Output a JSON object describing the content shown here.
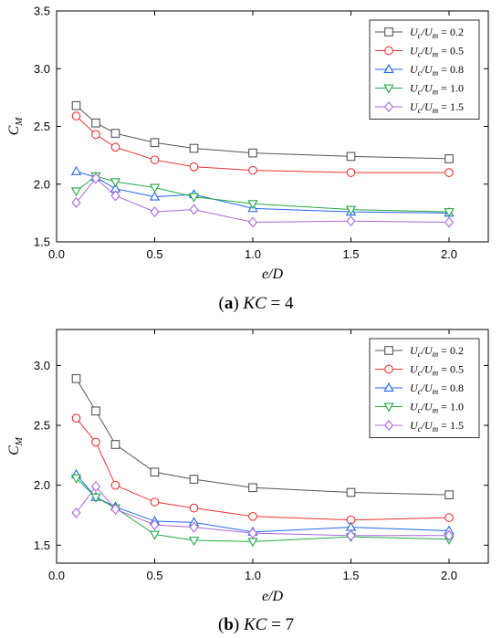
{
  "chart_data": [
    {
      "type": "line",
      "caption_label": "a",
      "caption_text": "KC = 4",
      "xlabel": "e/D",
      "ylabel": "C_M",
      "xlim": [
        0,
        2.2
      ],
      "ylim": [
        1.5,
        3.5
      ],
      "xticks": [
        0.0,
        0.5,
        1.0,
        1.5,
        2.0
      ],
      "xtick_labels": [
        "0.0",
        "0.5",
        "1.0",
        "1.5",
        "2.0"
      ],
      "yticks": [
        1.5,
        2.0,
        2.5,
        3.0,
        3.5
      ],
      "ytick_labels": [
        "1.5",
        "2.0",
        "2.5",
        "3.0",
        "3.5"
      ],
      "legend_position": "top-right",
      "x": [
        0.1,
        0.2,
        0.3,
        0.5,
        0.7,
        1.0,
        1.5,
        2.0
      ],
      "series": [
        {
          "name": "Uc/Um = 0.2",
          "color": "#555555",
          "marker": "square",
          "values": [
            2.68,
            2.53,
            2.44,
            2.36,
            2.31,
            2.27,
            2.24,
            2.22
          ]
        },
        {
          "name": "Uc/Um = 0.5",
          "color": "#ee3333",
          "marker": "circle",
          "values": [
            2.59,
            2.43,
            2.32,
            2.21,
            2.15,
            2.12,
            2.1,
            2.1
          ]
        },
        {
          "name": "Uc/Um = 0.8",
          "color": "#2266ee",
          "marker": "triangle-up",
          "values": [
            2.11,
            2.06,
            1.96,
            1.89,
            1.91,
            1.79,
            1.76,
            1.75
          ]
        },
        {
          "name": "Uc/Um = 1.0",
          "color": "#22aa44",
          "marker": "triangle-down",
          "values": [
            1.94,
            2.07,
            2.02,
            1.97,
            1.89,
            1.83,
            1.78,
            1.76
          ]
        },
        {
          "name": "Uc/Um = 1.5",
          "color": "#aa66dd",
          "marker": "diamond",
          "values": [
            1.84,
            2.05,
            1.9,
            1.76,
            1.78,
            1.67,
            1.68,
            1.67
          ]
        }
      ]
    },
    {
      "type": "line",
      "caption_label": "b",
      "caption_text": "KC = 7",
      "xlabel": "e/D",
      "ylabel": "C_M",
      "xlim": [
        0,
        2.2
      ],
      "ylim": [
        1.35,
        3.3
      ],
      "xticks": [
        0.0,
        0.5,
        1.0,
        1.5,
        2.0
      ],
      "xtick_labels": [
        "0.0",
        "0.5",
        "1.0",
        "1.5",
        "2.0"
      ],
      "yticks": [
        1.5,
        2.0,
        2.5,
        3.0
      ],
      "ytick_labels": [
        "1.5",
        "2.0",
        "2.5",
        "3.0"
      ],
      "legend_position": "top-right",
      "x": [
        0.1,
        0.2,
        0.3,
        0.5,
        0.7,
        1.0,
        1.5,
        2.0
      ],
      "series": [
        {
          "name": "Uc/Um = 0.2",
          "color": "#555555",
          "marker": "square",
          "values": [
            2.89,
            2.62,
            2.34,
            2.11,
            2.05,
            1.98,
            1.94,
            1.92
          ]
        },
        {
          "name": "Uc/Um = 0.5",
          "color": "#ee3333",
          "marker": "circle",
          "values": [
            2.56,
            2.36,
            2.0,
            1.86,
            1.81,
            1.74,
            1.71,
            1.73
          ]
        },
        {
          "name": "Uc/Um = 0.8",
          "color": "#2266ee",
          "marker": "triangle-up",
          "values": [
            2.09,
            1.9,
            1.82,
            1.7,
            1.69,
            1.61,
            1.65,
            1.62
          ]
        },
        {
          "name": "Uc/Um = 1.0",
          "color": "#22aa44",
          "marker": "triangle-down",
          "values": [
            2.06,
            1.9,
            1.81,
            1.59,
            1.54,
            1.53,
            1.57,
            1.55
          ]
        },
        {
          "name": "Uc/Um = 1.5",
          "color": "#aa66dd",
          "marker": "diamond",
          "values": [
            1.77,
            1.99,
            1.8,
            1.67,
            1.65,
            1.6,
            1.58,
            1.58
          ]
        }
      ]
    }
  ]
}
